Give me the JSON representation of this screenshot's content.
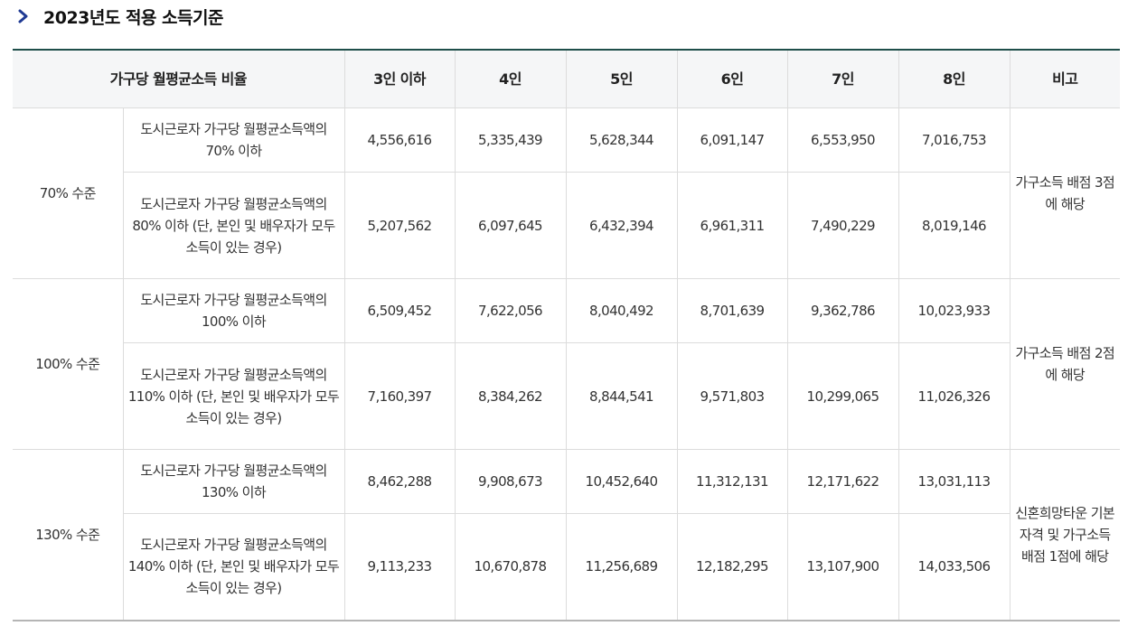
{
  "section_title": "2023년도 적용 소득기준",
  "icon": "chevron-right-icon",
  "accent_color": "#1f3a93",
  "table": {
    "headers": [
      "가구당 월평균소득 비율",
      "3인 이하",
      "4인",
      "5인",
      "6인",
      "7인",
      "8인",
      "비고"
    ],
    "groups": [
      {
        "level": "70% 수준",
        "note": "가구소득 배점 3점에 해당",
        "rows": [
          {
            "desc": "도시근로자 가구당 월평균소득액의 70% 이하",
            "values": [
              "4,556,616",
              "5,335,439",
              "5,628,344",
              "6,091,147",
              "6,553,950",
              "7,016,753"
            ]
          },
          {
            "desc": "도시근로자 가구당 월평균소득액의 80% 이하 (단, 본인 및 배우자가 모두 소득이 있는 경우)",
            "values": [
              "5,207,562",
              "6,097,645",
              "6,432,394",
              "6,961,311",
              "7,490,229",
              "8,019,146"
            ]
          }
        ]
      },
      {
        "level": "100% 수준",
        "note": "가구소득 배점 2점에 해당",
        "rows": [
          {
            "desc": "도시근로자 가구당 월평균소득액의 100% 이하",
            "values": [
              "6,509,452",
              "7,622,056",
              "8,040,492",
              "8,701,639",
              "9,362,786",
              "10,023,933"
            ]
          },
          {
            "desc": "도시근로자 가구당 월평균소득액의 110% 이하 (단, 본인 및 배우자가 모두 소득이 있는 경우)",
            "values": [
              "7,160,397",
              "8,384,262",
              "8,844,541",
              "9,571,803",
              "10,299,065",
              "11,026,326"
            ]
          }
        ]
      },
      {
        "level": "130% 수준",
        "note": "신혼희망타운 기본자격 및 가구소득 배점 1점에 해당",
        "rows": [
          {
            "desc": "도시근로자 가구당 월평균소득액의 130% 이하",
            "values": [
              "8,462,288",
              "9,908,673",
              "10,452,640",
              "11,312,131",
              "12,171,622",
              "13,031,113"
            ]
          },
          {
            "desc": "도시근로자 가구당 월평균소득액의 140% 이하 (단, 본인 및 배우자가 모두 소득이 있는 경우)",
            "values": [
              "9,113,233",
              "10,670,878",
              "11,256,689",
              "12,182,295",
              "13,107,900",
              "14,033,506"
            ]
          }
        ]
      }
    ]
  }
}
